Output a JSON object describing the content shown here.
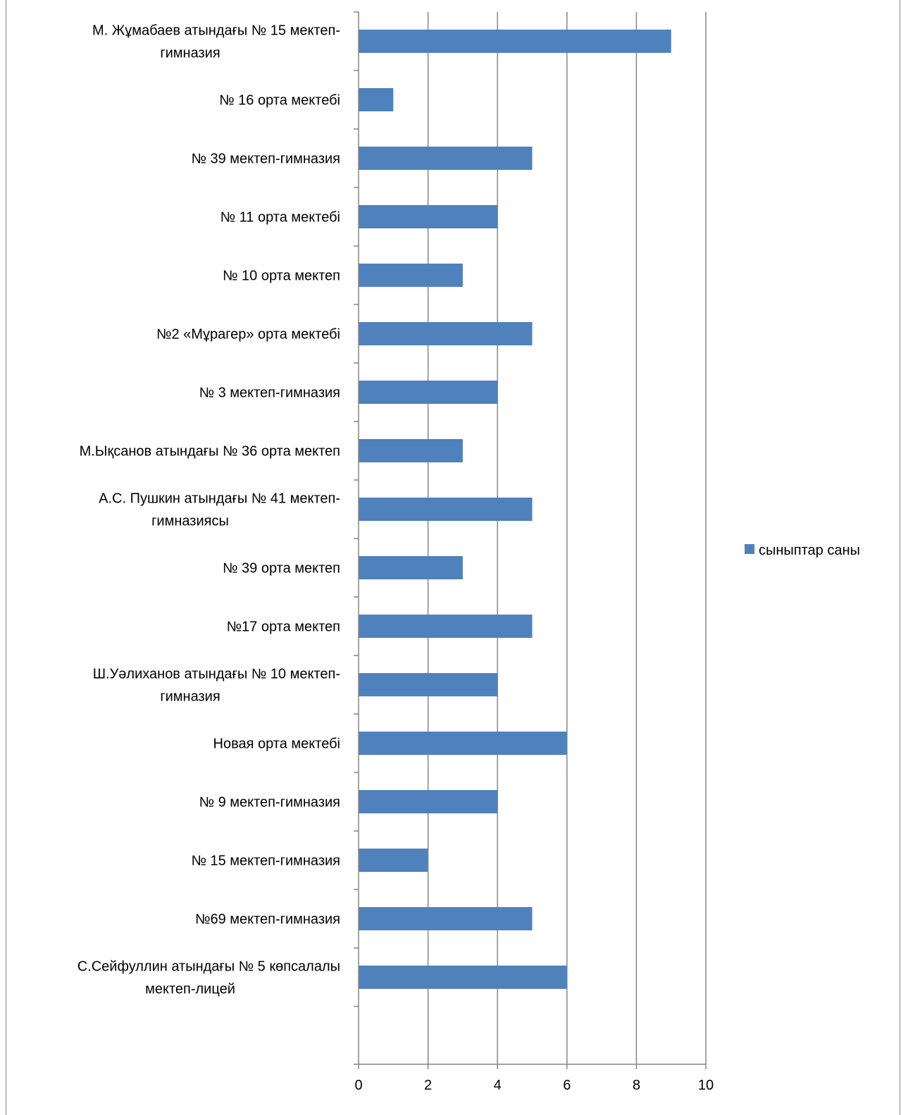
{
  "chart_data": {
    "type": "bar",
    "orientation": "horizontal",
    "categories": [
      [
        "М. Жұмабаев атындағы № 15 мектеп-",
        "гимназия"
      ],
      [
        "№ 16 орта мектебі"
      ],
      [
        "№ 39 мектеп-гимназия"
      ],
      [
        "№ 11 орта мектебі"
      ],
      [
        "№ 10 орта мектеп"
      ],
      [
        "№2 «Мұрагер» орта мектебі"
      ],
      [
        "№ 3 мектеп-гимназия"
      ],
      [
        "М.Ықсанов атындағы № 36 орта мектеп"
      ],
      [
        "А.С. Пушкин атындағы № 41 мектеп-",
        "гимназиясы"
      ],
      [
        "№ 39 орта мектеп"
      ],
      [
        "№17 орта мектеп"
      ],
      [
        "Ш.Уәлиханов атындағы № 10 мектеп-",
        "гимназия"
      ],
      [
        "Новая орта мектебі"
      ],
      [
        "№ 9 мектеп-гимназия"
      ],
      [
        "№ 15 мектеп-гимназия"
      ],
      [
        "№69 мектеп-гимназия"
      ],
      [
        "С.Сейфуллин атындағы № 5 көпсалалы",
        "мектеп-лицей"
      ]
    ],
    "series": [
      {
        "name": "сыныптар саны",
        "values": [
          9,
          1,
          5,
          4,
          3,
          5,
          4,
          3,
          5,
          3,
          5,
          4,
          6,
          4,
          2,
          5,
          6
        ],
        "color": "#4f81bd"
      }
    ],
    "xlim": [
      0,
      10
    ],
    "xticks": [
      "0",
      "2",
      "4",
      "6",
      "8",
      "10"
    ],
    "grid": true,
    "legend_position": "right"
  }
}
